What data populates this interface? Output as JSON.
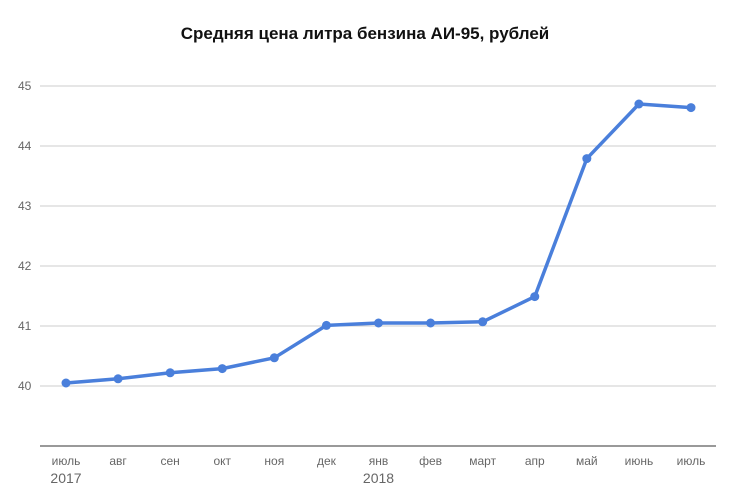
{
  "chart_data": {
    "type": "line",
    "title": "Средняя цена литра бензина АИ-95, рублей",
    "xlabel": "",
    "ylabel": "",
    "categories": [
      "июль",
      "авг",
      "сен",
      "окт",
      "ноя",
      "дек",
      "янв",
      "фев",
      "март",
      "апр",
      "май",
      "июнь",
      "июль"
    ],
    "year_labels": [
      {
        "index": 0,
        "label": "2017"
      },
      {
        "index": 6,
        "label": "2018"
      }
    ],
    "series": [
      {
        "values": [
          40.05,
          40.12,
          40.22,
          40.29,
          40.47,
          41.01,
          41.05,
          41.05,
          41.07,
          41.49,
          43.79,
          44.7,
          44.64
        ]
      }
    ],
    "ylim": [
      39,
      45
    ],
    "yticks": [
      40,
      41,
      42,
      43,
      44,
      45
    ],
    "grid": true,
    "legend": "none",
    "colors": {
      "line": "#4a7fdb",
      "grid": "#cccccc",
      "axis": "#333333"
    }
  }
}
